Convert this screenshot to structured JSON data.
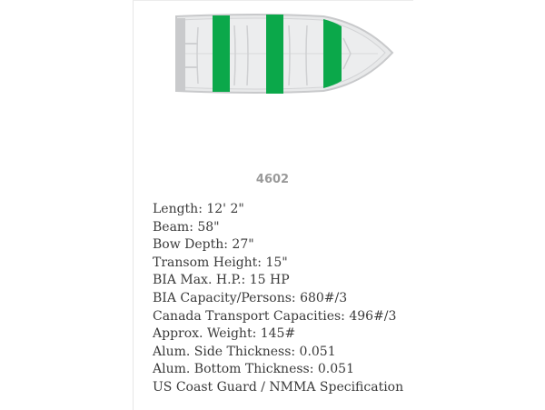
{
  "product": {
    "model": "4602",
    "image_icon": "boat-top-view",
    "accent_color": "#0ba84a",
    "specs": [
      "Length: 12' 2\"",
      "Beam: 58\"",
      "Bow Depth: 27\"",
      "Transom Height: 15\"",
      "BIA Max. H.P.: 15 HP",
      "BIA Capacity/Persons: 680#/3",
      "Canada Transport Capacities: 496#/3",
      "Approx. Weight: 145#",
      "Alum. Side Thickness: 0.051",
      "Alum. Bottom Thickness: 0.051",
      "US Coast Guard / NMMA Specification"
    ]
  }
}
